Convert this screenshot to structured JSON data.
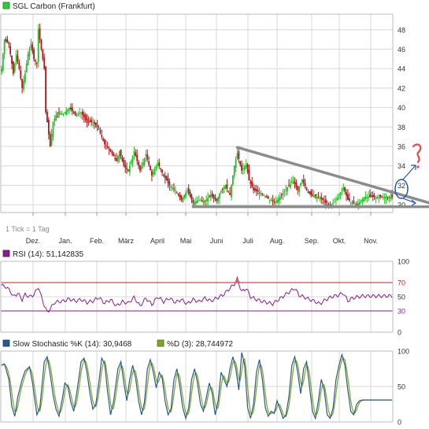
{
  "colors": {
    "up": "#22c022",
    "down": "#b01818",
    "grid": "#d8d8d8",
    "trendline": "#8c8c8c",
    "rsi_line": "#8a1e8a",
    "rsi_band": "#cc2222",
    "stoch_k": "#2a5a8a",
    "stoch_d": "#7ba820",
    "annotation_blue": "#2255bb",
    "annotation_red": "#ee4444",
    "legend_price_swatch": "#33cc33",
    "legend_rsi_swatch": "#8a1e8a",
    "legend_stoch_k_swatch": "#2a5a8a",
    "legend_stoch_d_swatch": "#7ba820"
  },
  "chart_data": [
    {
      "type": "candlestick",
      "title": "SGL Carbon (Frankfurt)",
      "note": "1 Tick = 1 Tag",
      "x_tick_labels": [
        "Dez.",
        "Jan.",
        "Feb.",
        "März",
        "April",
        "Mai",
        "Juni",
        "Juli",
        "Aug.",
        "Sep.",
        "Okt.",
        "Nov."
      ],
      "y_ticks": [
        30,
        32,
        34,
        36,
        38,
        40,
        42,
        44,
        46,
        48
      ],
      "ylim": [
        29.2,
        49.6
      ],
      "grid": true,
      "anchors": [
        [
          0,
          44.0
        ],
        [
          2,
          47.0
        ],
        [
          5,
          46.5
        ],
        [
          8,
          43.5
        ],
        [
          10,
          45.5
        ],
        [
          12,
          44.0
        ],
        [
          14,
          42.0
        ],
        [
          16,
          43.5
        ],
        [
          18,
          45.5
        ],
        [
          20,
          46.5
        ],
        [
          22,
          45.0
        ],
        [
          24,
          44.5
        ],
        [
          25,
          48.0
        ],
        [
          27,
          46.0
        ],
        [
          29,
          44.0
        ],
        [
          30,
          39.5
        ],
        [
          31,
          38.5
        ],
        [
          33,
          36.0
        ],
        [
          35,
          38.5
        ],
        [
          38,
          39.5
        ],
        [
          42,
          39.3
        ],
        [
          46,
          40.0
        ],
        [
          50,
          39.2
        ],
        [
          54,
          39.5
        ],
        [
          58,
          38.5
        ],
        [
          62,
          38.5
        ],
        [
          66,
          37.8
        ],
        [
          70,
          36.2
        ],
        [
          74,
          35.5
        ],
        [
          78,
          34.5
        ],
        [
          80,
          35.5
        ],
        [
          83,
          34.0
        ],
        [
          86,
          33.5
        ],
        [
          90,
          35.5
        ],
        [
          94,
          33.5
        ],
        [
          98,
          35.2
        ],
        [
          102,
          33.0
        ],
        [
          106,
          34.3
        ],
        [
          110,
          33.0
        ],
        [
          114,
          32.0
        ],
        [
          118,
          31.5
        ],
        [
          122,
          30.5
        ],
        [
          126,
          31.5
        ],
        [
          130,
          30.2
        ],
        [
          134,
          30.5
        ],
        [
          138,
          30.4
        ],
        [
          142,
          31.0
        ],
        [
          146,
          30.4
        ],
        [
          148,
          31.2
        ],
        [
          152,
          32.0
        ],
        [
          155,
          31.0
        ],
        [
          158,
          34.0
        ],
        [
          160,
          35.3
        ],
        [
          163,
          33.5
        ],
        [
          166,
          34.2
        ],
        [
          168,
          32.5
        ],
        [
          171,
          31.5
        ],
        [
          175,
          31.3
        ],
        [
          178,
          31.0
        ],
        [
          182,
          30.5
        ],
        [
          186,
          30.3
        ],
        [
          190,
          31.0
        ],
        [
          194,
          31.8
        ],
        [
          198,
          32.5
        ],
        [
          201,
          31.5
        ],
        [
          204,
          32.6
        ],
        [
          207,
          31.5
        ],
        [
          210,
          31.0
        ],
        [
          214,
          30.8
        ],
        [
          218,
          30.5
        ],
        [
          222,
          29.8
        ],
        [
          226,
          30.3
        ],
        [
          229,
          31.0
        ],
        [
          232,
          31.8
        ],
        [
          235,
          30.5
        ],
        [
          238,
          30.2
        ],
        [
          241,
          30.0
        ],
        [
          244,
          30.4
        ],
        [
          246,
          30.8
        ]
      ],
      "trendlines": [
        {
          "name": "upper",
          "from": [
            160,
            35.9
          ],
          "to": [
            266,
            30.2
          ]
        },
        {
          "name": "support",
          "from": [
            130,
            29.8
          ],
          "to": [
            266,
            29.8
          ]
        }
      ]
    },
    {
      "type": "line",
      "title": "RSI (14): 51,142835",
      "y_ticks": [
        0,
        30,
        50,
        70,
        100
      ],
      "ylim": [
        0,
        100
      ],
      "bands": [
        30,
        70
      ],
      "anchors": [
        [
          0,
          66
        ],
        [
          3,
          64
        ],
        [
          6,
          58
        ],
        [
          8,
          50
        ],
        [
          11,
          55
        ],
        [
          14,
          46
        ],
        [
          16,
          53
        ],
        [
          19,
          50
        ],
        [
          22,
          53
        ],
        [
          25,
          64
        ],
        [
          27,
          50
        ],
        [
          29,
          38
        ],
        [
          31,
          28
        ],
        [
          33,
          33
        ],
        [
          36,
          42
        ],
        [
          39,
          43
        ],
        [
          42,
          44
        ],
        [
          46,
          47
        ],
        [
          50,
          44
        ],
        [
          54,
          46
        ],
        [
          58,
          42
        ],
        [
          62,
          44
        ],
        [
          66,
          49
        ],
        [
          70,
          41
        ],
        [
          74,
          46
        ],
        [
          78,
          37
        ],
        [
          82,
          43
        ],
        [
          86,
          41
        ],
        [
          90,
          49
        ],
        [
          94,
          37
        ],
        [
          98,
          48
        ],
        [
          102,
          39
        ],
        [
          106,
          50
        ],
        [
          110,
          43
        ],
        [
          114,
          48
        ],
        [
          118,
          42
        ],
        [
          122,
          46
        ],
        [
          126,
          40
        ],
        [
          130,
          46
        ],
        [
          134,
          43
        ],
        [
          138,
          48
        ],
        [
          142,
          44
        ],
        [
          146,
          48
        ],
        [
          150,
          52
        ],
        [
          154,
          60
        ],
        [
          158,
          68
        ],
        [
          160,
          75
        ],
        [
          163,
          57
        ],
        [
          166,
          62
        ],
        [
          169,
          50
        ],
        [
          172,
          47
        ],
        [
          176,
          44
        ],
        [
          180,
          42
        ],
        [
          184,
          40
        ],
        [
          188,
          46
        ],
        [
          192,
          52
        ],
        [
          196,
          58
        ],
        [
          199,
          62
        ],
        [
          202,
          52
        ],
        [
          205,
          50
        ],
        [
          208,
          47
        ],
        [
          212,
          44
        ],
        [
          216,
          40
        ],
        [
          220,
          46
        ],
        [
          224,
          50
        ],
        [
          228,
          52
        ],
        [
          232,
          55
        ],
        [
          235,
          44
        ],
        [
          238,
          48
        ],
        [
          242,
          50
        ],
        [
          246,
          51
        ]
      ]
    },
    {
      "type": "line",
      "series": [
        {
          "name": "Slow Stochastic %K (14): 30,9468",
          "role": "k"
        },
        {
          "name": "%D (3): 28,744972",
          "role": "d"
        }
      ],
      "y_ticks": [
        0,
        50,
        100
      ],
      "ylim": [
        0,
        100
      ],
      "anchors": [
        [
          0,
          80
        ],
        [
          2,
          82
        ],
        [
          5,
          60
        ],
        [
          7,
          22
        ],
        [
          9,
          8
        ],
        [
          11,
          35
        ],
        [
          14,
          60
        ],
        [
          16,
          72
        ],
        [
          19,
          78
        ],
        [
          21,
          55
        ],
        [
          24,
          10
        ],
        [
          26,
          20
        ],
        [
          29,
          85
        ],
        [
          31,
          92
        ],
        [
          33,
          68
        ],
        [
          35,
          38
        ],
        [
          37,
          18
        ],
        [
          39,
          8
        ],
        [
          41,
          30
        ],
        [
          43,
          55
        ],
        [
          45,
          50
        ],
        [
          47,
          28
        ],
        [
          49,
          15
        ],
        [
          51,
          40
        ],
        [
          54,
          85
        ],
        [
          56,
          90
        ],
        [
          58,
          70
        ],
        [
          60,
          40
        ],
        [
          62,
          18
        ],
        [
          64,
          25
        ],
        [
          66,
          55
        ],
        [
          68,
          90
        ],
        [
          70,
          82
        ],
        [
          72,
          42
        ],
        [
          74,
          10
        ],
        [
          76,
          28
        ],
        [
          79,
          75
        ],
        [
          81,
          85
        ],
        [
          83,
          55
        ],
        [
          85,
          30
        ],
        [
          87,
          60
        ],
        [
          89,
          80
        ],
        [
          91,
          62
        ],
        [
          93,
          30
        ],
        [
          95,
          10
        ],
        [
          97,
          28
        ],
        [
          99,
          75
        ],
        [
          101,
          88
        ],
        [
          103,
          70
        ],
        [
          105,
          48
        ],
        [
          107,
          70
        ],
        [
          109,
          62
        ],
        [
          111,
          30
        ],
        [
          113,
          10
        ],
        [
          115,
          18
        ],
        [
          117,
          60
        ],
        [
          119,
          75
        ],
        [
          121,
          50
        ],
        [
          123,
          20
        ],
        [
          125,
          5
        ],
        [
          127,
          20
        ],
        [
          129,
          60
        ],
        [
          131,
          75
        ],
        [
          133,
          55
        ],
        [
          135,
          25
        ],
        [
          137,
          15
        ],
        [
          139,
          35
        ],
        [
          141,
          55
        ],
        [
          143,
          40
        ],
        [
          145,
          10
        ],
        [
          147,
          30
        ],
        [
          149,
          70
        ],
        [
          151,
          60
        ],
        [
          153,
          50
        ],
        [
          155,
          75
        ],
        [
          157,
          92
        ],
        [
          159,
          75
        ],
        [
          161,
          45
        ],
        [
          163,
          98
        ],
        [
          165,
          80
        ],
        [
          167,
          20
        ],
        [
          169,
          5
        ],
        [
          171,
          25
        ],
        [
          173,
          70
        ],
        [
          175,
          88
        ],
        [
          177,
          60
        ],
        [
          179,
          20
        ],
        [
          181,
          8
        ],
        [
          183,
          15
        ],
        [
          185,
          12
        ],
        [
          187,
          30
        ],
        [
          189,
          18
        ],
        [
          191,
          5
        ],
        [
          193,
          10
        ],
        [
          195,
          35
        ],
        [
          197,
          80
        ],
        [
          199,
          92
        ],
        [
          201,
          70
        ],
        [
          203,
          40
        ],
        [
          205,
          75
        ],
        [
          207,
          85
        ],
        [
          209,
          50
        ],
        [
          211,
          15
        ],
        [
          213,
          5
        ],
        [
          215,
          30
        ],
        [
          217,
          60
        ],
        [
          219,
          45
        ],
        [
          221,
          10
        ],
        [
          223,
          5
        ],
        [
          225,
          20
        ],
        [
          227,
          60
        ],
        [
          229,
          80
        ],
        [
          231,
          95
        ],
        [
          233,
          80
        ],
        [
          235,
          45
        ],
        [
          237,
          15
        ],
        [
          239,
          10
        ],
        [
          241,
          25
        ],
        [
          243,
          30
        ],
        [
          245,
          31
        ],
        [
          246,
          31
        ]
      ]
    }
  ]
}
